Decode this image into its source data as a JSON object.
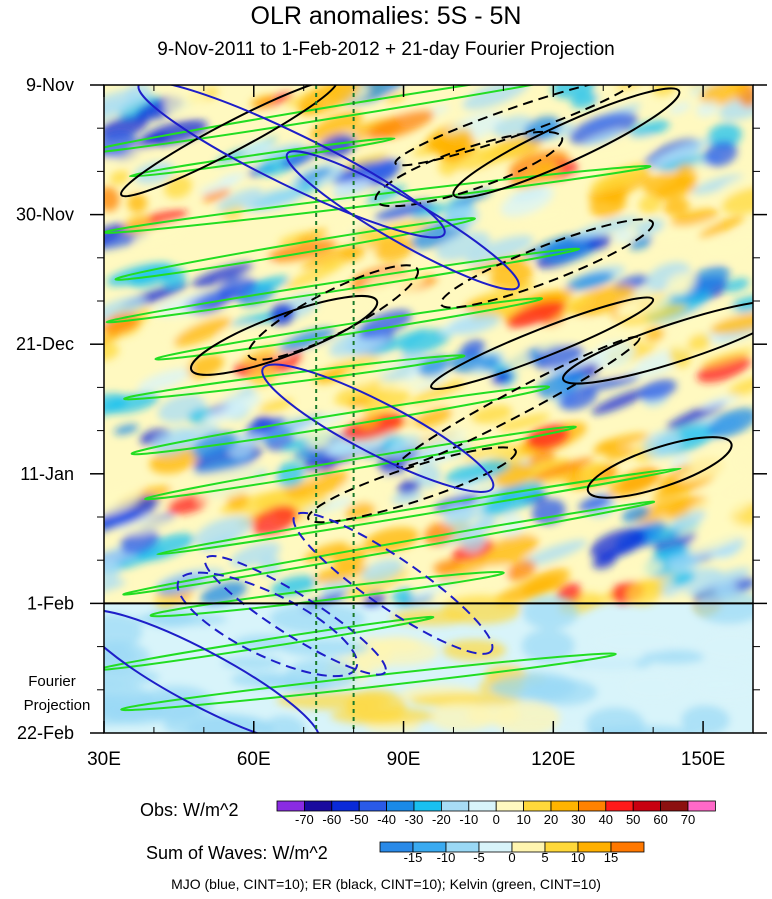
{
  "chart_data": {
    "type": "heatmap",
    "title": "OLR anomalies: 5S - 5N",
    "subtitle": "9-Nov-2011 to 1-Feb-2012 + 21-day Fourier Projection",
    "x_axis": {
      "range": [
        30,
        160
      ],
      "tick_values": [
        30,
        60,
        90,
        120,
        150
      ],
      "tick_labels": [
        "30E",
        "60E",
        "90E",
        "120E",
        "150E"
      ]
    },
    "y_axis": {
      "tick_labels": [
        "9-Nov",
        "30-Nov",
        "21-Dec",
        "11-Jan",
        "1-Feb",
        "22-Feb"
      ],
      "tick_day_offsets": [
        0,
        21,
        42,
        63,
        84,
        105
      ],
      "total_days": 105,
      "observation_end_day": 84,
      "projection_label": [
        "Fourier",
        "Projection"
      ]
    },
    "reference_longitudes": [
      72.5,
      80
    ],
    "colorbars": [
      {
        "label": "Obs: W/m^2",
        "levels": [
          "-70",
          "-60",
          "-50",
          "-40",
          "-30",
          "-20",
          "-10",
          "0",
          "10",
          "20",
          "30",
          "40",
          "50",
          "60",
          "70"
        ],
        "colors": [
          "#8a2be2",
          "#1a0a9e",
          "#0a2ad8",
          "#2a5ae8",
          "#1a8ae8",
          "#19c0f0",
          "#a8dcf5",
          "#d8f4fa",
          "#fff9c0",
          "#ffd83a",
          "#ffb400",
          "#ff8200",
          "#ff1a1a",
          "#c80010",
          "#8c1010",
          "#ff69c8"
        ]
      },
      {
        "label": "Sum of Waves: W/m^2",
        "levels": [
          "-15",
          "-10",
          "-5",
          "0",
          "5",
          "10",
          "15"
        ],
        "colors": [
          "#2a8ae8",
          "#3aaaf0",
          "#9ad8f5",
          "#d8f4fa",
          "#fff5b0",
          "#ffd83a",
          "#ffb000",
          "#ff7800"
        ]
      }
    ],
    "footnote": "MJO (blue, CINT=10); ER (black, CINT=10); Kelvin (green, CINT=10)",
    "contour_colors": {
      "mjo": "#1e1ec8",
      "er": "#000000",
      "kelvin": "#22dd22"
    }
  }
}
